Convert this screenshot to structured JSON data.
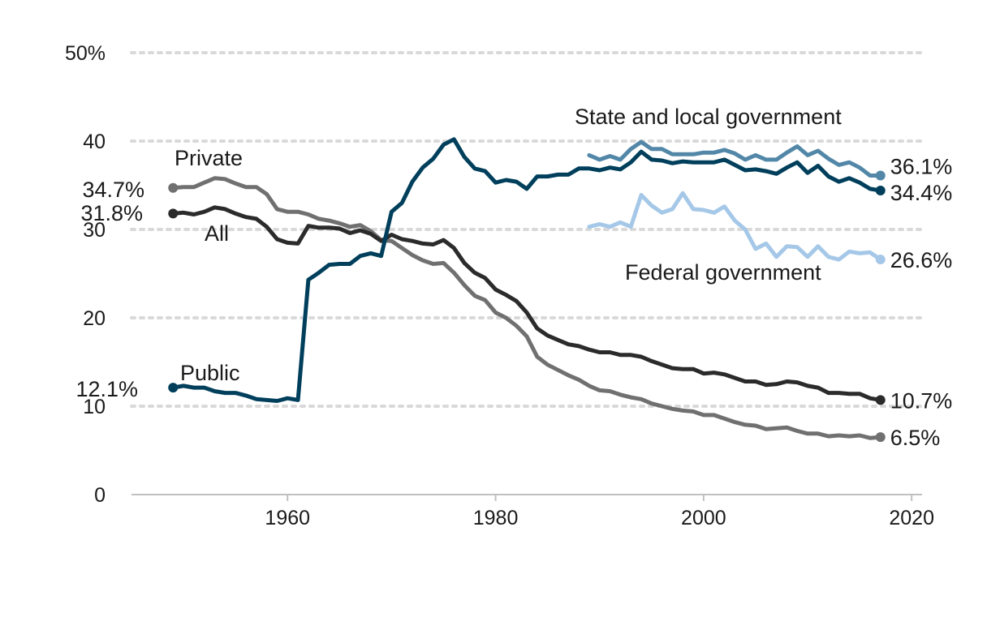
{
  "chart_data": {
    "type": "line",
    "title": "",
    "xlabel": "",
    "ylabel": "",
    "xlim": [
      1945,
      2021
    ],
    "ylim": [
      0,
      50
    ],
    "x_ticks": [
      1960,
      1980,
      2000,
      2020
    ],
    "x_tick_labels": [
      "1960",
      "1980",
      "2000",
      "2020"
    ],
    "y_ticks": [
      0,
      10,
      20,
      30,
      40,
      50
    ],
    "y_tick_labels": [
      "0",
      "10",
      "20",
      "30",
      "40",
      "50%"
    ],
    "grid": true,
    "legend": "none",
    "series": [
      {
        "name": "Private",
        "color": "#707070",
        "start_label": "34.7%",
        "end_label": "6.5%",
        "x": [
          1949,
          1950,
          1951,
          1952,
          1953,
          1954,
          1955,
          1956,
          1957,
          1958,
          1959,
          1960,
          1961,
          1962,
          1963,
          1964,
          1965,
          1966,
          1967,
          1968,
          1969,
          1970,
          1971,
          1972,
          1973,
          1974,
          1975,
          1976,
          1977,
          1978,
          1979,
          1980,
          1981,
          1982,
          1983,
          1984,
          1985,
          1986,
          1987,
          1988,
          1989,
          1990,
          1991,
          1992,
          1993,
          1994,
          1995,
          1996,
          1997,
          1998,
          1999,
          2000,
          2001,
          2002,
          2003,
          2004,
          2005,
          2006,
          2007,
          2008,
          2009,
          2010,
          2011,
          2012,
          2013,
          2014,
          2015,
          2016,
          2017
        ],
        "values": [
          34.7,
          34.8,
          34.8,
          35.3,
          35.8,
          35.7,
          35.2,
          34.8,
          34.8,
          34.0,
          32.3,
          32.0,
          32.0,
          31.7,
          31.2,
          31.0,
          30.7,
          30.3,
          30.5,
          29.8,
          28.8,
          28.7,
          27.9,
          27.1,
          26.5,
          26.1,
          26.2,
          25.1,
          23.7,
          22.5,
          22.0,
          20.6,
          20.0,
          19.1,
          17.9,
          15.6,
          14.7,
          14.1,
          13.5,
          13.0,
          12.3,
          11.8,
          11.7,
          11.3,
          11.0,
          10.8,
          10.3,
          10.0,
          9.7,
          9.5,
          9.4,
          9.0,
          9.0,
          8.6,
          8.2,
          7.9,
          7.8,
          7.4,
          7.5,
          7.6,
          7.2,
          6.9,
          6.9,
          6.6,
          6.7,
          6.6,
          6.7,
          6.4,
          6.5
        ]
      },
      {
        "name": "All",
        "color": "#2b2b2b",
        "start_label": "31.8%",
        "end_label": "10.7%",
        "x": [
          1949,
          1950,
          1951,
          1952,
          1953,
          1954,
          1955,
          1956,
          1957,
          1958,
          1959,
          1960,
          1961,
          1962,
          1963,
          1964,
          1965,
          1966,
          1967,
          1968,
          1969,
          1970,
          1971,
          1972,
          1973,
          1974,
          1975,
          1976,
          1977,
          1978,
          1979,
          1980,
          1981,
          1982,
          1983,
          1984,
          1985,
          1986,
          1987,
          1988,
          1989,
          1990,
          1991,
          1992,
          1993,
          1994,
          1995,
          1996,
          1997,
          1998,
          1999,
          2000,
          2001,
          2002,
          2003,
          2004,
          2005,
          2006,
          2007,
          2008,
          2009,
          2010,
          2011,
          2012,
          2013,
          2014,
          2015,
          2016,
          2017
        ],
        "values": [
          31.8,
          31.9,
          31.7,
          32.0,
          32.5,
          32.3,
          31.8,
          31.4,
          31.2,
          30.3,
          28.9,
          28.5,
          28.4,
          30.4,
          30.2,
          30.2,
          30.1,
          29.6,
          29.9,
          29.5,
          28.7,
          29.4,
          28.9,
          28.7,
          28.4,
          28.3,
          28.8,
          27.9,
          26.2,
          25.1,
          24.5,
          23.2,
          22.6,
          21.9,
          20.6,
          18.8,
          18.0,
          17.5,
          17.0,
          16.8,
          16.4,
          16.1,
          16.1,
          15.8,
          15.8,
          15.6,
          15.1,
          14.7,
          14.3,
          14.2,
          14.2,
          13.7,
          13.8,
          13.6,
          13.2,
          12.8,
          12.8,
          12.4,
          12.5,
          12.8,
          12.7,
          12.3,
          12.1,
          11.5,
          11.5,
          11.4,
          11.4,
          10.9,
          10.7
        ]
      },
      {
        "name": "Public",
        "color": "#003f5c",
        "start_label": "12.1%",
        "end_label": "34.4%",
        "x": [
          1949,
          1950,
          1951,
          1952,
          1953,
          1954,
          1955,
          1956,
          1957,
          1958,
          1959,
          1960,
          1961,
          1962,
          1963,
          1964,
          1965,
          1966,
          1967,
          1968,
          1969,
          1970,
          1971,
          1972,
          1973,
          1974,
          1975,
          1976,
          1977,
          1978,
          1979,
          1980,
          1981,
          1982,
          1983,
          1984,
          1985,
          1986,
          1987,
          1988,
          1989,
          1990,
          1991,
          1992,
          1993,
          1994,
          1995,
          1996,
          1997,
          1998,
          1999,
          2000,
          2001,
          2002,
          2003,
          2004,
          2005,
          2006,
          2007,
          2008,
          2009,
          2010,
          2011,
          2012,
          2013,
          2014,
          2015,
          2016,
          2017
        ],
        "values": [
          12.1,
          12.3,
          12.1,
          12.1,
          11.7,
          11.5,
          11.5,
          11.2,
          10.8,
          10.7,
          10.6,
          10.9,
          10.7,
          24.3,
          25.1,
          26.0,
          26.1,
          26.1,
          27.0,
          27.3,
          27.0,
          32.0,
          33.0,
          35.4,
          37.0,
          38.0,
          39.6,
          40.2,
          38.2,
          36.9,
          36.6,
          35.3,
          35.6,
          35.4,
          34.6,
          36.0,
          36.0,
          36.2,
          36.2,
          36.9,
          36.9,
          36.7,
          37.0,
          36.8,
          37.6,
          38.8,
          37.9,
          37.8,
          37.5,
          37.7,
          37.6,
          37.6,
          37.6,
          37.9,
          37.3,
          36.7,
          36.8,
          36.6,
          36.3,
          37.0,
          37.6,
          36.4,
          37.2,
          36.0,
          35.4,
          35.8,
          35.3,
          34.6,
          34.4
        ]
      },
      {
        "name": "State and local government",
        "color": "#5287a8",
        "end_label": "36.1%",
        "x": [
          1989,
          1990,
          1991,
          1992,
          1993,
          1994,
          1995,
          1996,
          1997,
          1998,
          1999,
          2000,
          2001,
          2002,
          2003,
          2004,
          2005,
          2006,
          2007,
          2008,
          2009,
          2010,
          2011,
          2012,
          2013,
          2014,
          2015,
          2016,
          2017
        ],
        "values": [
          38.4,
          37.9,
          38.3,
          37.9,
          39.1,
          39.9,
          39.1,
          39.1,
          38.5,
          38.5,
          38.5,
          38.7,
          38.7,
          39.0,
          38.6,
          37.9,
          38.4,
          37.9,
          37.9,
          38.7,
          39.4,
          38.4,
          38.9,
          38.0,
          37.3,
          37.6,
          37.0,
          36.1,
          36.1
        ]
      },
      {
        "name": "Federal government",
        "color": "#a5c8e8",
        "end_label": "26.6%",
        "x": [
          1989,
          1990,
          1991,
          1992,
          1993,
          1994,
          1995,
          1996,
          1997,
          1998,
          1999,
          2000,
          2001,
          2002,
          2003,
          2004,
          2005,
          2006,
          2007,
          2008,
          2009,
          2010,
          2011,
          2012,
          2013,
          2014,
          2015,
          2016,
          2017
        ],
        "values": [
          30.3,
          30.6,
          30.3,
          30.8,
          30.3,
          33.9,
          32.7,
          31.9,
          32.3,
          34.1,
          32.3,
          32.2,
          31.9,
          32.6,
          31.0,
          30.0,
          27.8,
          28.4,
          26.9,
          28.1,
          28.0,
          26.9,
          28.1,
          26.9,
          26.6,
          27.5,
          27.3,
          27.4,
          26.6
        ]
      }
    ]
  }
}
